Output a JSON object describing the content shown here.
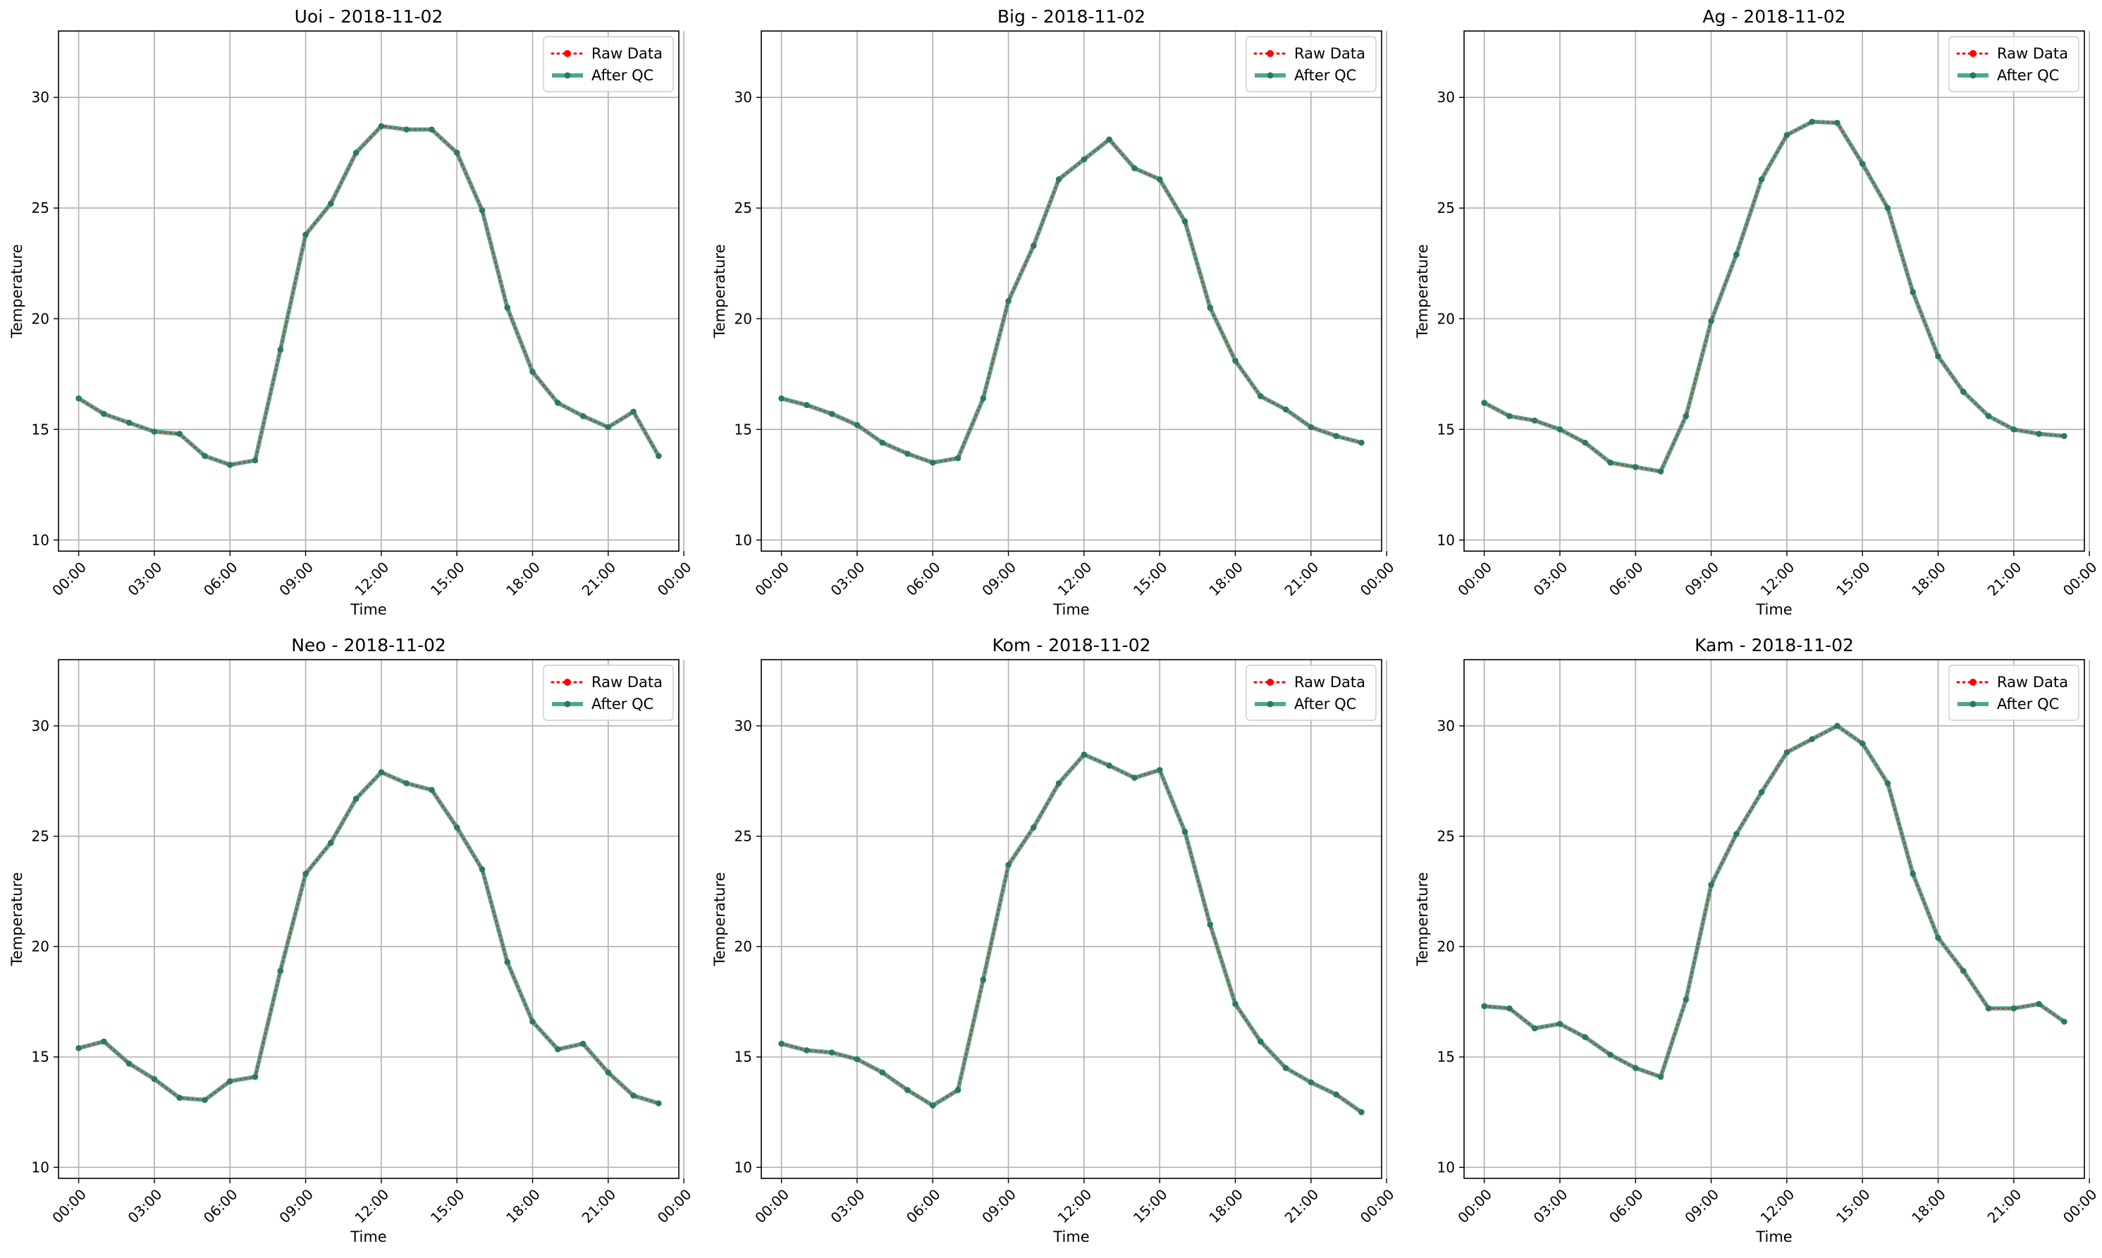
{
  "figure": {
    "colors": {
      "raw": "#ff0000",
      "qc": "#2e9a7a",
      "qc_marker": "#2b7a5e",
      "grid": "#b0b0b0"
    },
    "legend_position": "top-right"
  },
  "chart_data": [
    {
      "type": "line",
      "title": "Uoi - 2018-11-02",
      "xlabel": "Time",
      "ylabel": "Temperature",
      "xlim": [
        -0.8,
        23.8
      ],
      "ylim": [
        9.5,
        33
      ],
      "grid": true,
      "legend_position": "top-right",
      "x_tick_values": [
        0,
        3,
        6,
        9,
        12,
        15,
        18,
        21,
        24
      ],
      "x_tick_labels": [
        "00:00",
        "03:00",
        "06:00",
        "09:00",
        "12:00",
        "15:00",
        "18:00",
        "21:00",
        "00:00"
      ],
      "y_ticks": [
        10,
        15,
        20,
        25,
        30
      ],
      "x": [
        0,
        1,
        2,
        3,
        4,
        5,
        6,
        7,
        8,
        9,
        10,
        11,
        12,
        13,
        14,
        15,
        16,
        17,
        18,
        19,
        20,
        21,
        22,
        23
      ],
      "series": [
        {
          "name": "Raw Data",
          "style": "dotted",
          "values": [
            16.4,
            15.7,
            15.3,
            14.9,
            14.8,
            13.8,
            13.4,
            13.6,
            18.6,
            23.8,
            25.2,
            27.5,
            28.7,
            28.55,
            28.55,
            27.5,
            24.9,
            20.5,
            17.6,
            16.2,
            15.6,
            15.1,
            15.8,
            13.8
          ]
        },
        {
          "name": "After QC",
          "style": "solid",
          "values": [
            16.4,
            15.7,
            15.3,
            14.9,
            14.8,
            13.8,
            13.4,
            13.6,
            18.6,
            23.8,
            25.2,
            27.5,
            28.7,
            28.55,
            28.55,
            27.5,
            24.9,
            20.5,
            17.6,
            16.2,
            15.6,
            15.1,
            15.8,
            13.8
          ]
        }
      ]
    },
    {
      "type": "line",
      "title": "Big - 2018-11-02",
      "xlabel": "Time",
      "ylabel": "Temperature",
      "xlim": [
        -0.8,
        23.8
      ],
      "ylim": [
        9.5,
        33
      ],
      "grid": true,
      "legend_position": "top-right",
      "x_tick_values": [
        0,
        3,
        6,
        9,
        12,
        15,
        18,
        21,
        24
      ],
      "x_tick_labels": [
        "00:00",
        "03:00",
        "06:00",
        "09:00",
        "12:00",
        "15:00",
        "18:00",
        "21:00",
        "00:00"
      ],
      "y_ticks": [
        10,
        15,
        20,
        25,
        30
      ],
      "x": [
        0,
        1,
        2,
        3,
        4,
        5,
        6,
        7,
        8,
        9,
        10,
        11,
        12,
        13,
        14,
        15,
        16,
        17,
        18,
        19,
        20,
        21,
        22,
        23
      ],
      "series": [
        {
          "name": "Raw Data",
          "style": "dotted",
          "values": [
            16.4,
            16.1,
            15.7,
            15.2,
            14.4,
            13.9,
            13.5,
            13.7,
            16.4,
            20.8,
            23.3,
            26.3,
            27.2,
            28.1,
            26.8,
            26.3,
            24.4,
            20.5,
            18.1,
            16.5,
            15.9,
            15.1,
            14.7,
            14.4
          ]
        },
        {
          "name": "After QC",
          "style": "solid",
          "values": [
            16.4,
            16.1,
            15.7,
            15.2,
            14.4,
            13.9,
            13.5,
            13.7,
            16.4,
            20.8,
            23.3,
            26.3,
            27.2,
            28.1,
            26.8,
            26.3,
            24.4,
            20.5,
            18.1,
            16.5,
            15.9,
            15.1,
            14.7,
            14.4
          ]
        }
      ]
    },
    {
      "type": "line",
      "title": "Ag - 2018-11-02",
      "xlabel": "Time",
      "ylabel": "Temperature",
      "xlim": [
        -0.8,
        23.8
      ],
      "ylim": [
        9.5,
        33
      ],
      "grid": true,
      "legend_position": "top-right",
      "x_tick_values": [
        0,
        3,
        6,
        9,
        12,
        15,
        18,
        21,
        24
      ],
      "x_tick_labels": [
        "00:00",
        "03:00",
        "06:00",
        "09:00",
        "12:00",
        "15:00",
        "18:00",
        "21:00",
        "00:00"
      ],
      "y_ticks": [
        10,
        15,
        20,
        25,
        30
      ],
      "x": [
        0,
        1,
        2,
        3,
        4,
        5,
        6,
        7,
        8,
        9,
        10,
        11,
        12,
        13,
        14,
        15,
        16,
        17,
        18,
        19,
        20,
        21,
        22,
        23
      ],
      "series": [
        {
          "name": "Raw Data",
          "style": "dotted",
          "values": [
            16.2,
            15.6,
            15.4,
            15.0,
            14.4,
            13.5,
            13.3,
            13.1,
            15.6,
            19.9,
            22.9,
            26.3,
            28.3,
            28.9,
            28.85,
            27.0,
            25.0,
            21.2,
            18.3,
            16.7,
            15.6,
            15.0,
            14.8,
            14.7
          ]
        },
        {
          "name": "After QC",
          "style": "solid",
          "values": [
            16.2,
            15.6,
            15.4,
            15.0,
            14.4,
            13.5,
            13.3,
            13.1,
            15.6,
            19.9,
            22.9,
            26.3,
            28.3,
            28.9,
            28.85,
            27.0,
            25.0,
            21.2,
            18.3,
            16.7,
            15.6,
            15.0,
            14.8,
            14.7
          ]
        }
      ]
    },
    {
      "type": "line",
      "title": "Neo - 2018-11-02",
      "xlabel": "Time",
      "ylabel": "Temperature",
      "xlim": [
        -0.8,
        23.8
      ],
      "ylim": [
        9.5,
        33
      ],
      "grid": true,
      "legend_position": "top-right",
      "x_tick_values": [
        0,
        3,
        6,
        9,
        12,
        15,
        18,
        21,
        24
      ],
      "x_tick_labels": [
        "00:00",
        "03:00",
        "06:00",
        "09:00",
        "12:00",
        "15:00",
        "18:00",
        "21:00",
        "00:00"
      ],
      "y_ticks": [
        10,
        15,
        20,
        25,
        30
      ],
      "x": [
        0,
        1,
        2,
        3,
        4,
        5,
        6,
        7,
        8,
        9,
        10,
        11,
        12,
        13,
        14,
        15,
        16,
        17,
        18,
        19,
        20,
        21,
        22,
        23
      ],
      "series": [
        {
          "name": "Raw Data",
          "style": "dotted",
          "values": [
            15.4,
            15.7,
            14.7,
            14.0,
            13.15,
            13.05,
            13.9,
            14.1,
            18.9,
            23.3,
            24.7,
            26.7,
            27.9,
            27.4,
            27.1,
            25.4,
            23.5,
            19.3,
            16.6,
            15.35,
            15.6,
            14.3,
            13.25,
            12.9
          ]
        },
        {
          "name": "After QC",
          "style": "solid",
          "values": [
            15.4,
            15.7,
            14.7,
            14.0,
            13.15,
            13.05,
            13.9,
            14.1,
            18.9,
            23.3,
            24.7,
            26.7,
            27.9,
            27.4,
            27.1,
            25.4,
            23.5,
            19.3,
            16.6,
            15.35,
            15.6,
            14.3,
            13.25,
            12.9
          ]
        }
      ]
    },
    {
      "type": "line",
      "title": "Kom - 2018-11-02",
      "xlabel": "Time",
      "ylabel": "Temperature",
      "xlim": [
        -0.8,
        23.8
      ],
      "ylim": [
        9.5,
        33
      ],
      "grid": true,
      "legend_position": "top-right",
      "x_tick_values": [
        0,
        3,
        6,
        9,
        12,
        15,
        18,
        21,
        24
      ],
      "x_tick_labels": [
        "00:00",
        "03:00",
        "06:00",
        "09:00",
        "12:00",
        "15:00",
        "18:00",
        "21:00",
        "00:00"
      ],
      "y_ticks": [
        10,
        15,
        20,
        25,
        30
      ],
      "x": [
        0,
        1,
        2,
        3,
        4,
        5,
        6,
        7,
        8,
        9,
        10,
        11,
        12,
        13,
        14,
        15,
        16,
        17,
        18,
        19,
        20,
        21,
        22,
        23
      ],
      "series": [
        {
          "name": "Raw Data",
          "style": "dotted",
          "values": [
            15.6,
            15.3,
            15.2,
            14.9,
            14.3,
            13.5,
            12.8,
            13.5,
            18.5,
            23.7,
            25.4,
            27.4,
            28.7,
            28.2,
            27.65,
            28.0,
            25.2,
            21.0,
            17.4,
            15.7,
            14.5,
            13.85,
            13.3,
            12.5
          ]
        },
        {
          "name": "After QC",
          "style": "solid",
          "values": [
            15.6,
            15.3,
            15.2,
            14.9,
            14.3,
            13.5,
            12.8,
            13.5,
            18.5,
            23.7,
            25.4,
            27.4,
            28.7,
            28.2,
            27.65,
            28.0,
            25.2,
            21.0,
            17.4,
            15.7,
            14.5,
            13.85,
            13.3,
            12.5
          ]
        }
      ]
    },
    {
      "type": "line",
      "title": "Kam - 2018-11-02",
      "xlabel": "Time",
      "ylabel": "Temperature",
      "xlim": [
        -0.8,
        23.8
      ],
      "ylim": [
        9.5,
        33
      ],
      "grid": true,
      "legend_position": "top-right",
      "x_tick_values": [
        0,
        3,
        6,
        9,
        12,
        15,
        18,
        21,
        24
      ],
      "x_tick_labels": [
        "00:00",
        "03:00",
        "06:00",
        "09:00",
        "12:00",
        "15:00",
        "18:00",
        "21:00",
        "00:00"
      ],
      "y_ticks": [
        10,
        15,
        20,
        25,
        30
      ],
      "x": [
        0,
        1,
        2,
        3,
        4,
        5,
        6,
        7,
        8,
        9,
        10,
        11,
        12,
        13,
        14,
        15,
        16,
        17,
        18,
        19,
        20,
        21,
        22,
        23
      ],
      "series": [
        {
          "name": "Raw Data",
          "style": "dotted",
          "values": [
            17.3,
            17.2,
            16.3,
            16.5,
            15.9,
            15.1,
            14.5,
            14.1,
            17.6,
            22.8,
            25.1,
            27.0,
            28.8,
            29.4,
            30.0,
            29.2,
            27.4,
            23.3,
            20.4,
            18.9,
            17.2,
            17.2,
            17.4,
            16.6
          ]
        },
        {
          "name": "After QC",
          "style": "solid",
          "values": [
            17.3,
            17.2,
            16.3,
            16.5,
            15.9,
            15.1,
            14.5,
            14.1,
            17.6,
            22.8,
            25.1,
            27.0,
            28.8,
            29.4,
            30.0,
            29.2,
            27.4,
            23.3,
            20.4,
            18.9,
            17.2,
            17.2,
            17.4,
            16.6
          ]
        }
      ]
    }
  ]
}
